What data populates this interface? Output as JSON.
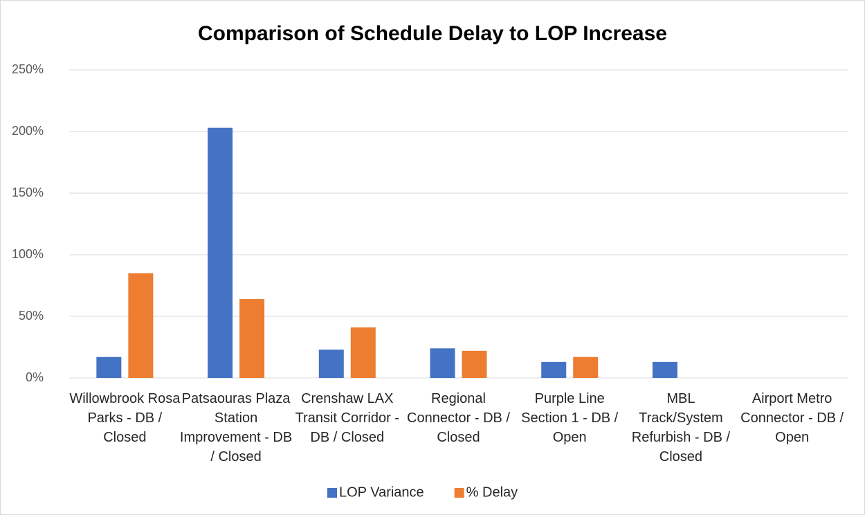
{
  "chart_data": {
    "type": "bar",
    "title": "Comparison of Schedule Delay to LOP Increase",
    "categories": [
      "Willowbrook Rosa Parks - DB / Closed",
      "Patsaouras Plaza Station Improvement - DB / Closed",
      "Crenshaw LAX Transit Corridor - DB / Closed",
      "Regional Connector - DB / Closed",
      "Purple Line Section 1 - DB / Open",
      "MBL Track/System Refurbish - DB / Closed",
      "Airport Metro Connector - DB / Open"
    ],
    "series": [
      {
        "name": "LOP Variance",
        "color": "#4472c4",
        "values": [
          17,
          203,
          23,
          24,
          13,
          13,
          null
        ]
      },
      {
        "name": "% Delay",
        "color": "#ed7d31",
        "values": [
          85,
          64,
          41,
          22,
          17,
          null,
          null
        ]
      }
    ],
    "ylim": [
      0,
      250
    ],
    "yticks": [
      {
        "value": 0,
        "label": "0%"
      },
      {
        "value": 50,
        "label": "50%"
      },
      {
        "value": 100,
        "label": "100%"
      },
      {
        "value": 150,
        "label": "150%"
      },
      {
        "value": 200,
        "label": "200%"
      },
      {
        "value": 250,
        "label": "250%"
      }
    ],
    "grid": true,
    "legend": "bottom"
  }
}
